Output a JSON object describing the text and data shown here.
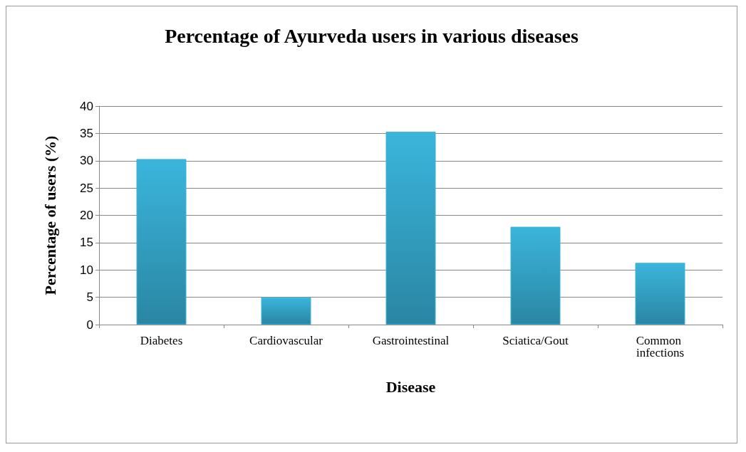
{
  "chart_data": {
    "type": "bar",
    "title": "Percentage of Ayurveda users in various diseases",
    "xlabel": "Disease",
    "ylabel": "Percentage of users (%)",
    "categories": [
      "Diabetes",
      "Cardiovascular",
      "Gastrointestinal",
      "Sciatica/Gout",
      "Common infections"
    ],
    "values": [
      30.3,
      5,
      35.3,
      17.9,
      11.3
    ],
    "color": "#3bb5dc",
    "ylim": [
      0,
      40
    ],
    "yticks": [
      0,
      5,
      10,
      15,
      20,
      25,
      30,
      35,
      40
    ],
    "grid": "y"
  }
}
